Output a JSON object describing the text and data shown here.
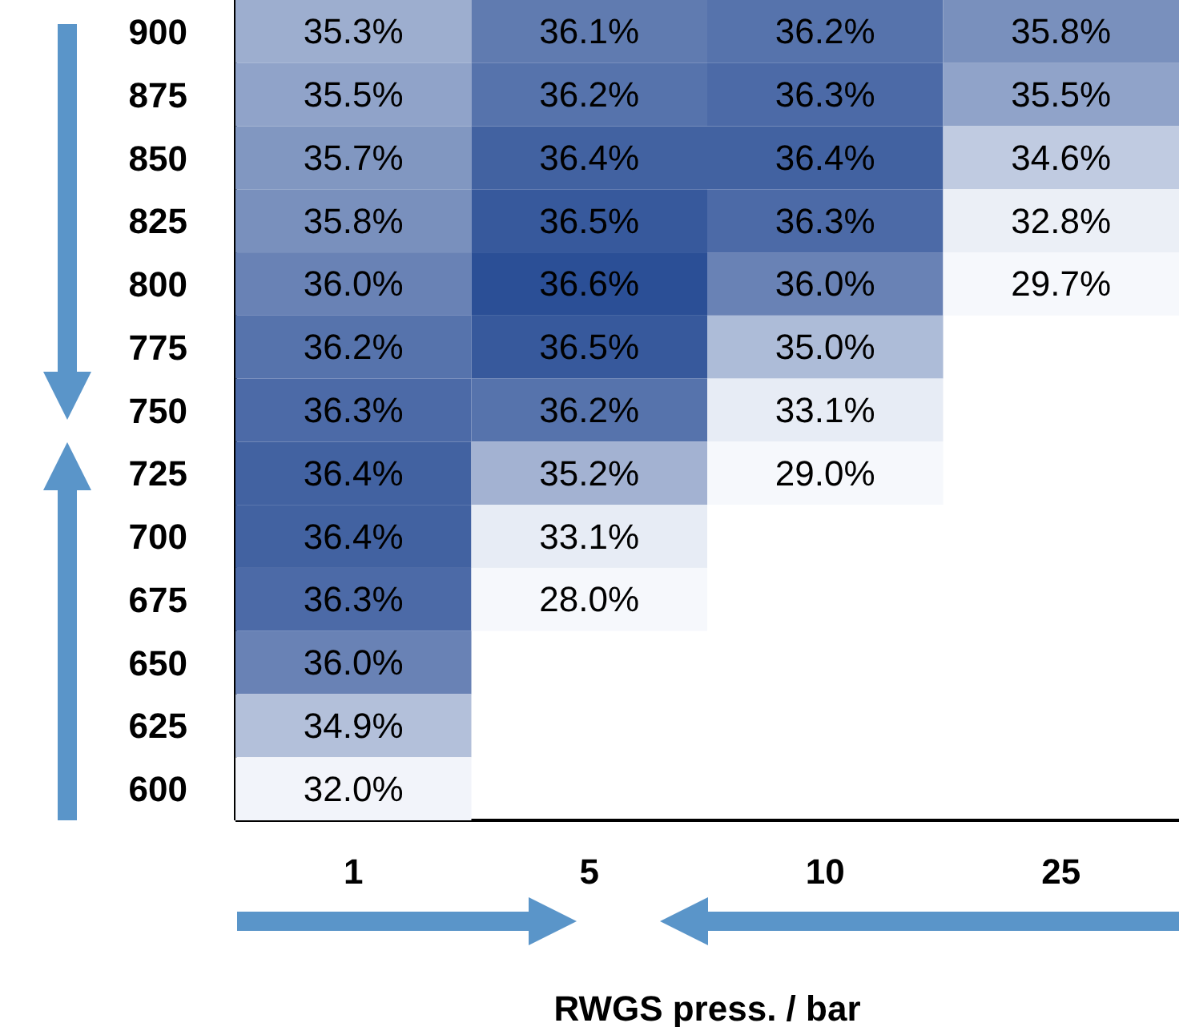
{
  "chart_data": {
    "type": "heatmap",
    "xlabel": "RWGS press. / bar",
    "categories": [
      "1",
      "5",
      "10",
      "25"
    ],
    "y_categories": [
      "900",
      "875",
      "850",
      "825",
      "800",
      "775",
      "750",
      "725",
      "700",
      "675",
      "650",
      "625",
      "600"
    ],
    "cells": [
      [
        35.3,
        36.1,
        36.2,
        35.8
      ],
      [
        35.5,
        36.2,
        36.3,
        35.5
      ],
      [
        35.7,
        36.4,
        36.4,
        34.6
      ],
      [
        35.8,
        36.5,
        36.3,
        32.8
      ],
      [
        36.0,
        36.6,
        36.0,
        29.7
      ],
      [
        36.2,
        36.5,
        35.0,
        null
      ],
      [
        36.3,
        36.2,
        33.1,
        null
      ],
      [
        36.4,
        35.2,
        29.0,
        null
      ],
      [
        36.4,
        33.1,
        null,
        null
      ],
      [
        36.3,
        28.0,
        null,
        null
      ],
      [
        36.0,
        null,
        null,
        null
      ],
      [
        34.9,
        null,
        null,
        null
      ],
      [
        32.0,
        null,
        null,
        null
      ]
    ],
    "cell_labels": [
      [
        "35.3%",
        "36.1%",
        "36.2%",
        "35.8%"
      ],
      [
        "35.5%",
        "36.2%",
        "36.3%",
        "35.5%"
      ],
      [
        "35.7%",
        "36.4%",
        "36.4%",
        "34.6%"
      ],
      [
        "35.8%",
        "36.5%",
        "36.3%",
        "32.8%"
      ],
      [
        "36.0%",
        "36.6%",
        "36.0%",
        "29.7%"
      ],
      [
        "36.2%",
        "36.5%",
        "35.0%",
        null
      ],
      [
        "36.3%",
        "36.2%",
        "33.1%",
        null
      ],
      [
        "36.4%",
        "35.2%",
        "29.0%",
        null
      ],
      [
        "36.4%",
        "33.1%",
        null,
        null
      ],
      [
        "36.3%",
        "28.0%",
        null,
        null
      ],
      [
        "36.0%",
        null,
        null,
        null
      ],
      [
        "34.9%",
        null,
        null,
        null
      ],
      [
        "32.0%",
        null,
        null,
        null
      ]
    ]
  }
}
